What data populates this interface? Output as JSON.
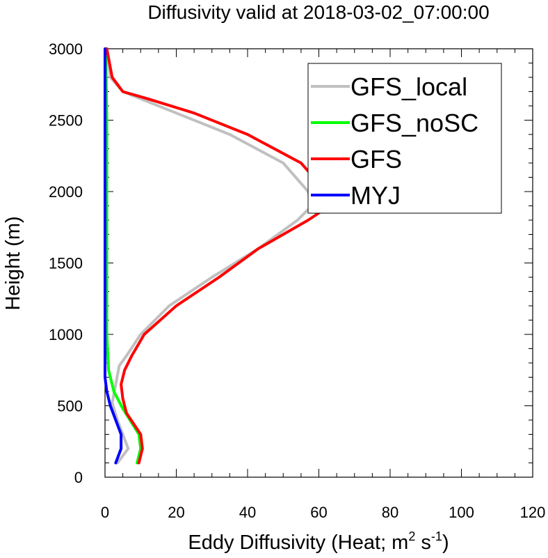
{
  "chart_data": {
    "type": "line",
    "title": "Diffusivity valid at 2018-03-02_07:00:00",
    "xlabel": "Eddy Diffusivity (Heat; m",
    "xlabel_sup1": "2",
    "xlabel_mid": " s",
    "xlabel_sup2": "-1",
    "xlabel_end": ")",
    "ylabel": "Height (m)",
    "xlim": [
      0,
      120
    ],
    "ylim": [
      0,
      3000
    ],
    "xticks": [
      "0",
      "20",
      "40",
      "60",
      "80",
      "100",
      "120"
    ],
    "yticks": [
      "0",
      "500",
      "1000",
      "1500",
      "2000",
      "2500",
      "3000"
    ],
    "grid": false,
    "legend_position": "top-right",
    "series": [
      {
        "name": "GFS_local",
        "color": "#c0c0c0",
        "points": [
          [
            3.5,
            100
          ],
          [
            6.5,
            200
          ],
          [
            5,
            300
          ],
          [
            3.5,
            400
          ],
          [
            2,
            520
          ],
          [
            3,
            650
          ],
          [
            4,
            780
          ],
          [
            6,
            850
          ],
          [
            10,
            1000
          ],
          [
            18,
            1200
          ],
          [
            30,
            1400
          ],
          [
            43,
            1600
          ],
          [
            54,
            1800
          ],
          [
            58,
            1900
          ],
          [
            57,
            2000
          ],
          [
            50,
            2200
          ],
          [
            35,
            2400
          ],
          [
            20,
            2550
          ],
          [
            5,
            2700
          ],
          [
            1.5,
            2800
          ],
          [
            0.5,
            3000
          ]
        ]
      },
      {
        "name": "GFS_noSC",
        "color": "#00ff00",
        "points": [
          [
            9,
            100
          ],
          [
            10,
            200
          ],
          [
            9.5,
            300
          ],
          [
            7,
            400
          ],
          [
            5,
            480
          ],
          [
            2.5,
            600
          ],
          [
            1,
            750
          ],
          [
            0.5,
            1000
          ],
          [
            0.5,
            1500
          ],
          [
            0.5,
            2000
          ],
          [
            0.5,
            2500
          ],
          [
            0.2,
            3000
          ]
        ]
      },
      {
        "name": "GFS",
        "color": "#ff0000",
        "points": [
          [
            9.5,
            100
          ],
          [
            10.5,
            200
          ],
          [
            10,
            300
          ],
          [
            6,
            450
          ],
          [
            5,
            550
          ],
          [
            4.5,
            650
          ],
          [
            5.5,
            750
          ],
          [
            7.5,
            850
          ],
          [
            11,
            1000
          ],
          [
            20,
            1200
          ],
          [
            32,
            1400
          ],
          [
            43,
            1600
          ],
          [
            57,
            1800
          ],
          [
            63,
            1900
          ],
          [
            62,
            2000
          ],
          [
            55,
            2200
          ],
          [
            40,
            2400
          ],
          [
            25,
            2550
          ],
          [
            12,
            2650
          ],
          [
            5,
            2700
          ],
          [
            2,
            2800
          ],
          [
            0.5,
            3000
          ]
        ]
      },
      {
        "name": "MYJ",
        "color": "#0000ff",
        "points": [
          [
            3,
            100
          ],
          [
            4.5,
            200
          ],
          [
            4.5,
            300
          ],
          [
            3,
            400
          ],
          [
            1.5,
            500
          ],
          [
            0.5,
            600
          ],
          [
            0,
            700
          ],
          [
            0,
            1000
          ],
          [
            0,
            1500
          ],
          [
            0,
            2000
          ],
          [
            0,
            2500
          ],
          [
            0,
            3000
          ]
        ]
      }
    ]
  }
}
